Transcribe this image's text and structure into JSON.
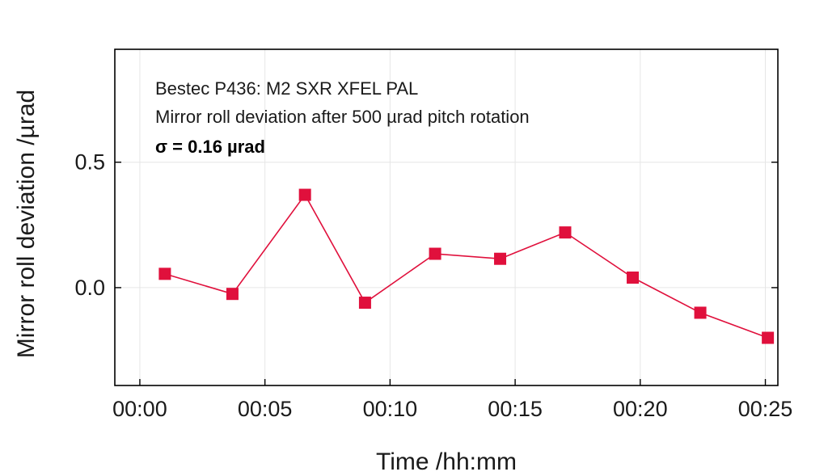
{
  "chart_data": {
    "type": "line",
    "annotations": [
      "Bestec P436: M2 SXR XFEL PAL",
      "Mirror roll deviation after 500 µrad pitch rotation",
      "σ = 0.16 µrad"
    ],
    "xlabel": "Time /hh:mm",
    "ylabel": "Mirror roll deviation /µrad",
    "x_ticks": [
      {
        "label": "00:00",
        "value": 0
      },
      {
        "label": "00:05",
        "value": 5
      },
      {
        "label": "00:10",
        "value": 10
      },
      {
        "label": "00:15",
        "value": 15
      },
      {
        "label": "00:20",
        "value": 20
      },
      {
        "label": "00:25",
        "value": 25
      }
    ],
    "y_ticks": [
      {
        "label": "0.0",
        "value": 0.0
      },
      {
        "label": "0.5",
        "value": 0.5
      }
    ],
    "xlim": [
      -1.0,
      25.5
    ],
    "ylim": [
      -0.39,
      0.95
    ],
    "grid": true,
    "series": [
      {
        "color": "#e0103c",
        "marker": "square",
        "x": [
          1.0,
          3.7,
          6.6,
          9.0,
          11.8,
          14.4,
          17.0,
          19.7,
          22.4,
          25.1
        ],
        "y": [
          0.055,
          -0.025,
          0.37,
          -0.06,
          0.135,
          0.115,
          0.22,
          0.04,
          -0.1,
          -0.2
        ]
      }
    ]
  }
}
